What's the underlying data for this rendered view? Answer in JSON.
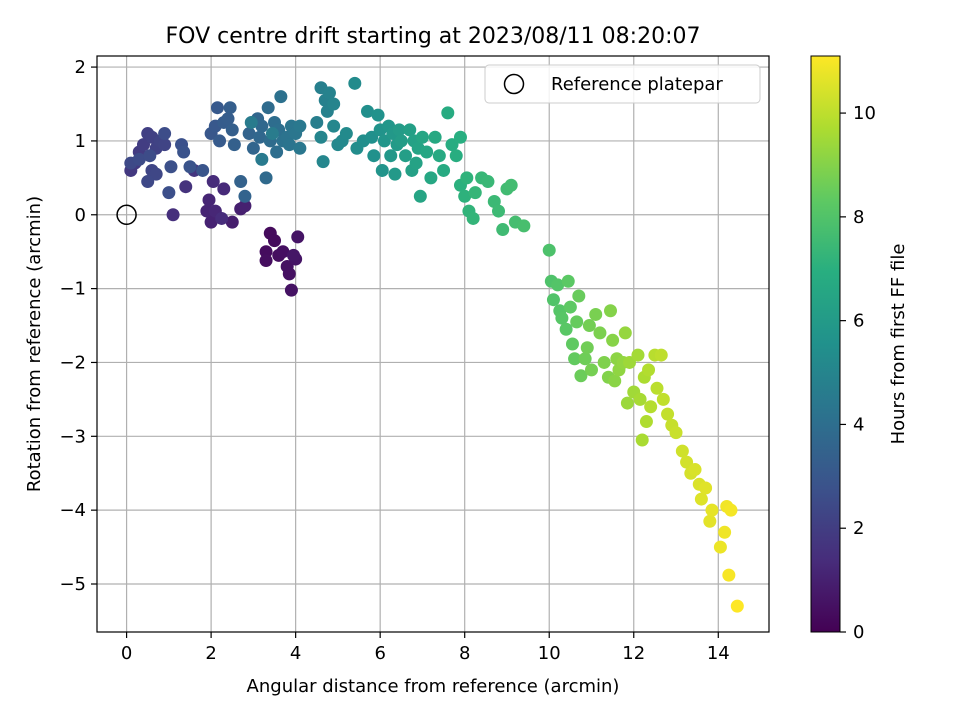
{
  "chart_data": {
    "type": "scatter",
    "title": "FOV centre drift starting at 2023/08/11 08:20:07",
    "xlabel": "Angular distance from reference (arcmin)",
    "ylabel": "Rotation from reference (arcmin)",
    "xlim": [
      -0.7,
      15.2
    ],
    "ylim": [
      -5.65,
      2.15
    ],
    "xticks": [
      0,
      2,
      4,
      6,
      8,
      10,
      12,
      14
    ],
    "yticks": [
      -5,
      -4,
      -3,
      -2,
      -1,
      0,
      1,
      2
    ],
    "xtick_labels": [
      "0",
      "2",
      "4",
      "6",
      "8",
      "10",
      "12",
      "14"
    ],
    "ytick_labels": [
      "−5",
      "−4",
      "−3",
      "−2",
      "−1",
      "0",
      "1",
      "2"
    ],
    "grid": true,
    "legend": {
      "position": "top-right",
      "entries": [
        {
          "label": "Reference platepar",
          "marker": "open-circle"
        }
      ]
    },
    "reference_point": {
      "x": 0,
      "y": 0
    },
    "colorbar": {
      "label": "Hours from first FF file",
      "range": [
        0,
        11.1
      ],
      "ticks": [
        0,
        2,
        4,
        6,
        8,
        10
      ],
      "tick_labels": [
        "0",
        "2",
        "4",
        "6",
        "8",
        "10"
      ],
      "colormap": "viridis"
    },
    "series": [
      {
        "colored_by": "hours",
        "points": [
          [
            3.4,
            -0.25,
            0.3
          ],
          [
            3.5,
            -0.35,
            0.3
          ],
          [
            3.3,
            -0.5,
            0.35
          ],
          [
            3.6,
            -0.55,
            0.4
          ],
          [
            3.3,
            -0.62,
            0.4
          ],
          [
            3.7,
            -0.5,
            0.45
          ],
          [
            3.8,
            -0.7,
            0.5
          ],
          [
            3.85,
            -0.8,
            0.5
          ],
          [
            3.9,
            -1.02,
            0.55
          ],
          [
            4.0,
            -0.6,
            0.6
          ],
          [
            4.05,
            -0.3,
            0.6
          ],
          [
            3.95,
            -0.55,
            0.65
          ],
          [
            2.5,
            -0.1,
            0.9
          ],
          [
            2.7,
            0.08,
            0.95
          ],
          [
            2.8,
            0.12,
            1.0
          ],
          [
            2.0,
            -0.1,
            1.05
          ],
          [
            1.9,
            0.05,
            1.1
          ],
          [
            1.95,
            0.2,
            1.15
          ],
          [
            2.1,
            0.05,
            1.2
          ],
          [
            2.3,
            0.35,
            1.3
          ],
          [
            2.05,
            0.45,
            1.35
          ],
          [
            2.25,
            -0.05,
            1.4
          ],
          [
            1.1,
            0.0,
            1.5
          ],
          [
            1.4,
            0.38,
            1.6
          ],
          [
            1.6,
            0.6,
            1.7
          ],
          [
            0.1,
            0.6,
            1.8
          ],
          [
            0.2,
            0.7,
            1.85
          ],
          [
            0.3,
            0.85,
            1.9
          ],
          [
            0.4,
            0.95,
            2.0
          ],
          [
            0.5,
            1.1,
            2.05
          ],
          [
            0.6,
            1.05,
            2.1
          ],
          [
            0.7,
            0.9,
            2.15
          ],
          [
            0.8,
            1.0,
            2.2
          ],
          [
            0.9,
            0.95,
            2.25
          ],
          [
            0.6,
            0.6,
            2.3
          ],
          [
            0.7,
            0.55,
            2.35
          ],
          [
            0.5,
            0.45,
            2.4
          ],
          [
            0.1,
            0.7,
            2.45
          ],
          [
            0.3,
            0.75,
            2.5
          ],
          [
            0.55,
            0.8,
            2.55
          ],
          [
            0.9,
            1.1,
            2.6
          ],
          [
            1.0,
            0.3,
            2.65
          ],
          [
            1.05,
            0.65,
            2.7
          ],
          [
            1.3,
            0.95,
            2.75
          ],
          [
            1.35,
            0.85,
            2.8
          ],
          [
            1.5,
            0.65,
            2.85
          ],
          [
            1.8,
            0.6,
            2.9
          ],
          [
            2.0,
            1.1,
            3.0
          ],
          [
            2.1,
            1.2,
            3.05
          ],
          [
            2.15,
            1.45,
            3.1
          ],
          [
            2.2,
            1.0,
            3.15
          ],
          [
            2.3,
            1.25,
            3.2
          ],
          [
            2.4,
            1.3,
            3.25
          ],
          [
            2.45,
            1.45,
            3.3
          ],
          [
            2.5,
            1.15,
            3.35
          ],
          [
            2.55,
            0.95,
            3.4
          ],
          [
            2.7,
            0.45,
            3.45
          ],
          [
            2.8,
            0.25,
            3.5
          ],
          [
            2.9,
            1.1,
            3.55
          ],
          [
            3.0,
            0.9,
            3.6
          ],
          [
            3.1,
            1.3,
            3.65
          ],
          [
            3.15,
            1.05,
            3.7
          ],
          [
            3.2,
            1.2,
            3.75
          ],
          [
            3.3,
            0.5,
            3.8
          ],
          [
            3.35,
            1.45,
            3.85
          ],
          [
            3.4,
            1.0,
            3.9
          ],
          [
            3.5,
            1.25,
            3.95
          ],
          [
            3.55,
            0.85,
            4.0
          ],
          [
            3.6,
            1.15,
            4.05
          ],
          [
            3.65,
            1.6,
            4.1
          ],
          [
            3.7,
            1.0,
            4.15
          ],
          [
            3.8,
            1.05,
            4.2
          ],
          [
            3.85,
            0.95,
            4.25
          ],
          [
            3.9,
            1.2,
            4.3
          ],
          [
            4.0,
            1.1,
            4.35
          ],
          [
            4.1,
            0.9,
            4.4
          ],
          [
            4.1,
            1.2,
            4.45
          ],
          [
            3.2,
            0.75,
            4.5
          ],
          [
            2.95,
            1.25,
            4.55
          ],
          [
            3.45,
            1.1,
            4.6
          ],
          [
            4.5,
            1.25,
            4.7
          ],
          [
            4.6,
            1.72,
            4.75
          ],
          [
            4.7,
            1.55,
            4.8
          ],
          [
            4.75,
            1.4,
            4.85
          ],
          [
            4.8,
            1.65,
            4.9
          ],
          [
            4.9,
            1.5,
            4.95
          ],
          [
            4.6,
            1.05,
            5.0
          ],
          [
            4.65,
            0.72,
            5.05
          ],
          [
            4.9,
            1.2,
            5.1
          ],
          [
            5.0,
            0.95,
            5.15
          ],
          [
            5.1,
            1.0,
            5.2
          ],
          [
            5.2,
            1.1,
            5.25
          ],
          [
            5.4,
            1.78,
            5.3
          ],
          [
            5.45,
            0.9,
            5.35
          ],
          [
            5.6,
            1.0,
            5.4
          ],
          [
            5.7,
            1.4,
            5.45
          ],
          [
            5.8,
            1.05,
            5.5
          ],
          [
            5.85,
            0.8,
            5.55
          ],
          [
            5.95,
            1.35,
            5.6
          ],
          [
            6.0,
            1.15,
            5.65
          ],
          [
            6.05,
            0.6,
            5.7
          ],
          [
            6.1,
            1.0,
            5.75
          ],
          [
            6.2,
            1.2,
            5.8
          ],
          [
            6.25,
            0.8,
            5.85
          ],
          [
            6.3,
            1.1,
            5.9
          ],
          [
            6.35,
            0.55,
            5.95
          ],
          [
            6.4,
            0.95,
            6.0
          ],
          [
            6.45,
            1.15,
            6.05
          ],
          [
            6.5,
            1.0,
            6.1
          ],
          [
            6.6,
            0.8,
            6.15
          ],
          [
            6.7,
            1.15,
            6.2
          ],
          [
            6.75,
            0.6,
            6.25
          ],
          [
            6.8,
            1.0,
            6.3
          ],
          [
            6.85,
            0.7,
            6.35
          ],
          [
            6.9,
            0.9,
            6.4
          ],
          [
            6.95,
            0.25,
            6.45
          ],
          [
            7.0,
            1.05,
            6.5
          ],
          [
            7.1,
            0.85,
            6.55
          ],
          [
            7.2,
            0.5,
            6.6
          ],
          [
            7.3,
            1.05,
            6.65
          ],
          [
            7.4,
            0.8,
            6.7
          ],
          [
            7.5,
            0.6,
            6.75
          ],
          [
            7.6,
            1.38,
            6.8
          ],
          [
            7.7,
            0.95,
            6.85
          ],
          [
            7.8,
            0.8,
            6.9
          ],
          [
            7.9,
            1.05,
            6.95
          ],
          [
            7.9,
            0.4,
            7.05
          ],
          [
            8.0,
            0.25,
            7.1
          ],
          [
            8.05,
            0.5,
            7.15
          ],
          [
            8.1,
            0.05,
            7.2
          ],
          [
            8.2,
            -0.05,
            7.25
          ],
          [
            8.25,
            0.3,
            7.3
          ],
          [
            8.4,
            0.5,
            7.35
          ],
          [
            8.55,
            0.45,
            7.4
          ],
          [
            8.7,
            0.18,
            7.45
          ],
          [
            8.8,
            0.05,
            7.5
          ],
          [
            8.9,
            -0.2,
            7.55
          ],
          [
            9.0,
            0.35,
            7.6
          ],
          [
            9.1,
            0.4,
            7.65
          ],
          [
            9.2,
            -0.1,
            7.7
          ],
          [
            9.4,
            -0.15,
            7.75
          ],
          [
            10.0,
            -0.48,
            7.9
          ],
          [
            10.05,
            -0.9,
            7.95
          ],
          [
            10.1,
            -1.15,
            8.0
          ],
          [
            10.2,
            -0.95,
            8.05
          ],
          [
            10.25,
            -1.3,
            8.1
          ],
          [
            10.3,
            -1.4,
            8.15
          ],
          [
            10.4,
            -1.55,
            8.2
          ],
          [
            10.45,
            -0.9,
            8.25
          ],
          [
            10.5,
            -1.25,
            8.3
          ],
          [
            10.55,
            -1.75,
            8.35
          ],
          [
            10.6,
            -1.95,
            8.4
          ],
          [
            10.65,
            -1.45,
            8.45
          ],
          [
            10.7,
            -1.1,
            8.5
          ],
          [
            10.75,
            -2.18,
            8.55
          ],
          [
            10.85,
            -1.95,
            8.6
          ],
          [
            10.9,
            -1.8,
            8.65
          ],
          [
            10.95,
            -1.5,
            8.7
          ],
          [
            11.0,
            -2.1,
            8.75
          ],
          [
            11.1,
            -1.35,
            8.8
          ],
          [
            11.2,
            -1.6,
            8.85
          ],
          [
            11.3,
            -2.0,
            8.9
          ],
          [
            11.4,
            -2.2,
            8.95
          ],
          [
            11.45,
            -1.3,
            9.0
          ],
          [
            11.5,
            -1.7,
            9.05
          ],
          [
            11.55,
            -2.25,
            9.1
          ],
          [
            11.6,
            -1.95,
            9.15
          ],
          [
            11.65,
            -2.1,
            9.2
          ],
          [
            11.75,
            -2.0,
            9.25
          ],
          [
            11.8,
            -1.6,
            9.3
          ],
          [
            11.85,
            -2.55,
            9.4
          ],
          [
            11.9,
            -2.0,
            9.45
          ],
          [
            12.0,
            -2.4,
            9.5
          ],
          [
            12.1,
            -1.9,
            9.55
          ],
          [
            12.15,
            -2.5,
            9.6
          ],
          [
            12.2,
            -3.05,
            9.65
          ],
          [
            12.25,
            -2.2,
            9.7
          ],
          [
            12.3,
            -2.8,
            9.75
          ],
          [
            12.35,
            -2.1,
            9.8
          ],
          [
            12.4,
            -2.6,
            9.85
          ],
          [
            12.5,
            -1.9,
            9.9
          ],
          [
            12.55,
            -2.35,
            9.95
          ],
          [
            12.65,
            -1.9,
            10.0
          ],
          [
            12.7,
            -2.5,
            10.05
          ],
          [
            12.8,
            -2.7,
            10.1
          ],
          [
            12.9,
            -2.85,
            10.15
          ],
          [
            13.0,
            -2.95,
            10.2
          ],
          [
            13.15,
            -3.2,
            10.3
          ],
          [
            13.25,
            -3.35,
            10.35
          ],
          [
            13.35,
            -3.5,
            10.4
          ],
          [
            13.45,
            -3.45,
            10.45
          ],
          [
            13.55,
            -3.65,
            10.5
          ],
          [
            13.6,
            -3.85,
            10.55
          ],
          [
            13.7,
            -3.7,
            10.6
          ],
          [
            13.8,
            -4.15,
            10.65
          ],
          [
            13.85,
            -4.0,
            10.7
          ],
          [
            14.05,
            -4.5,
            10.8
          ],
          [
            14.15,
            -4.3,
            10.85
          ],
          [
            14.2,
            -3.95,
            10.9
          ],
          [
            14.3,
            -4.0,
            10.95
          ],
          [
            14.25,
            -4.88,
            11.0
          ],
          [
            14.45,
            -5.3,
            11.1
          ]
        ]
      }
    ]
  }
}
